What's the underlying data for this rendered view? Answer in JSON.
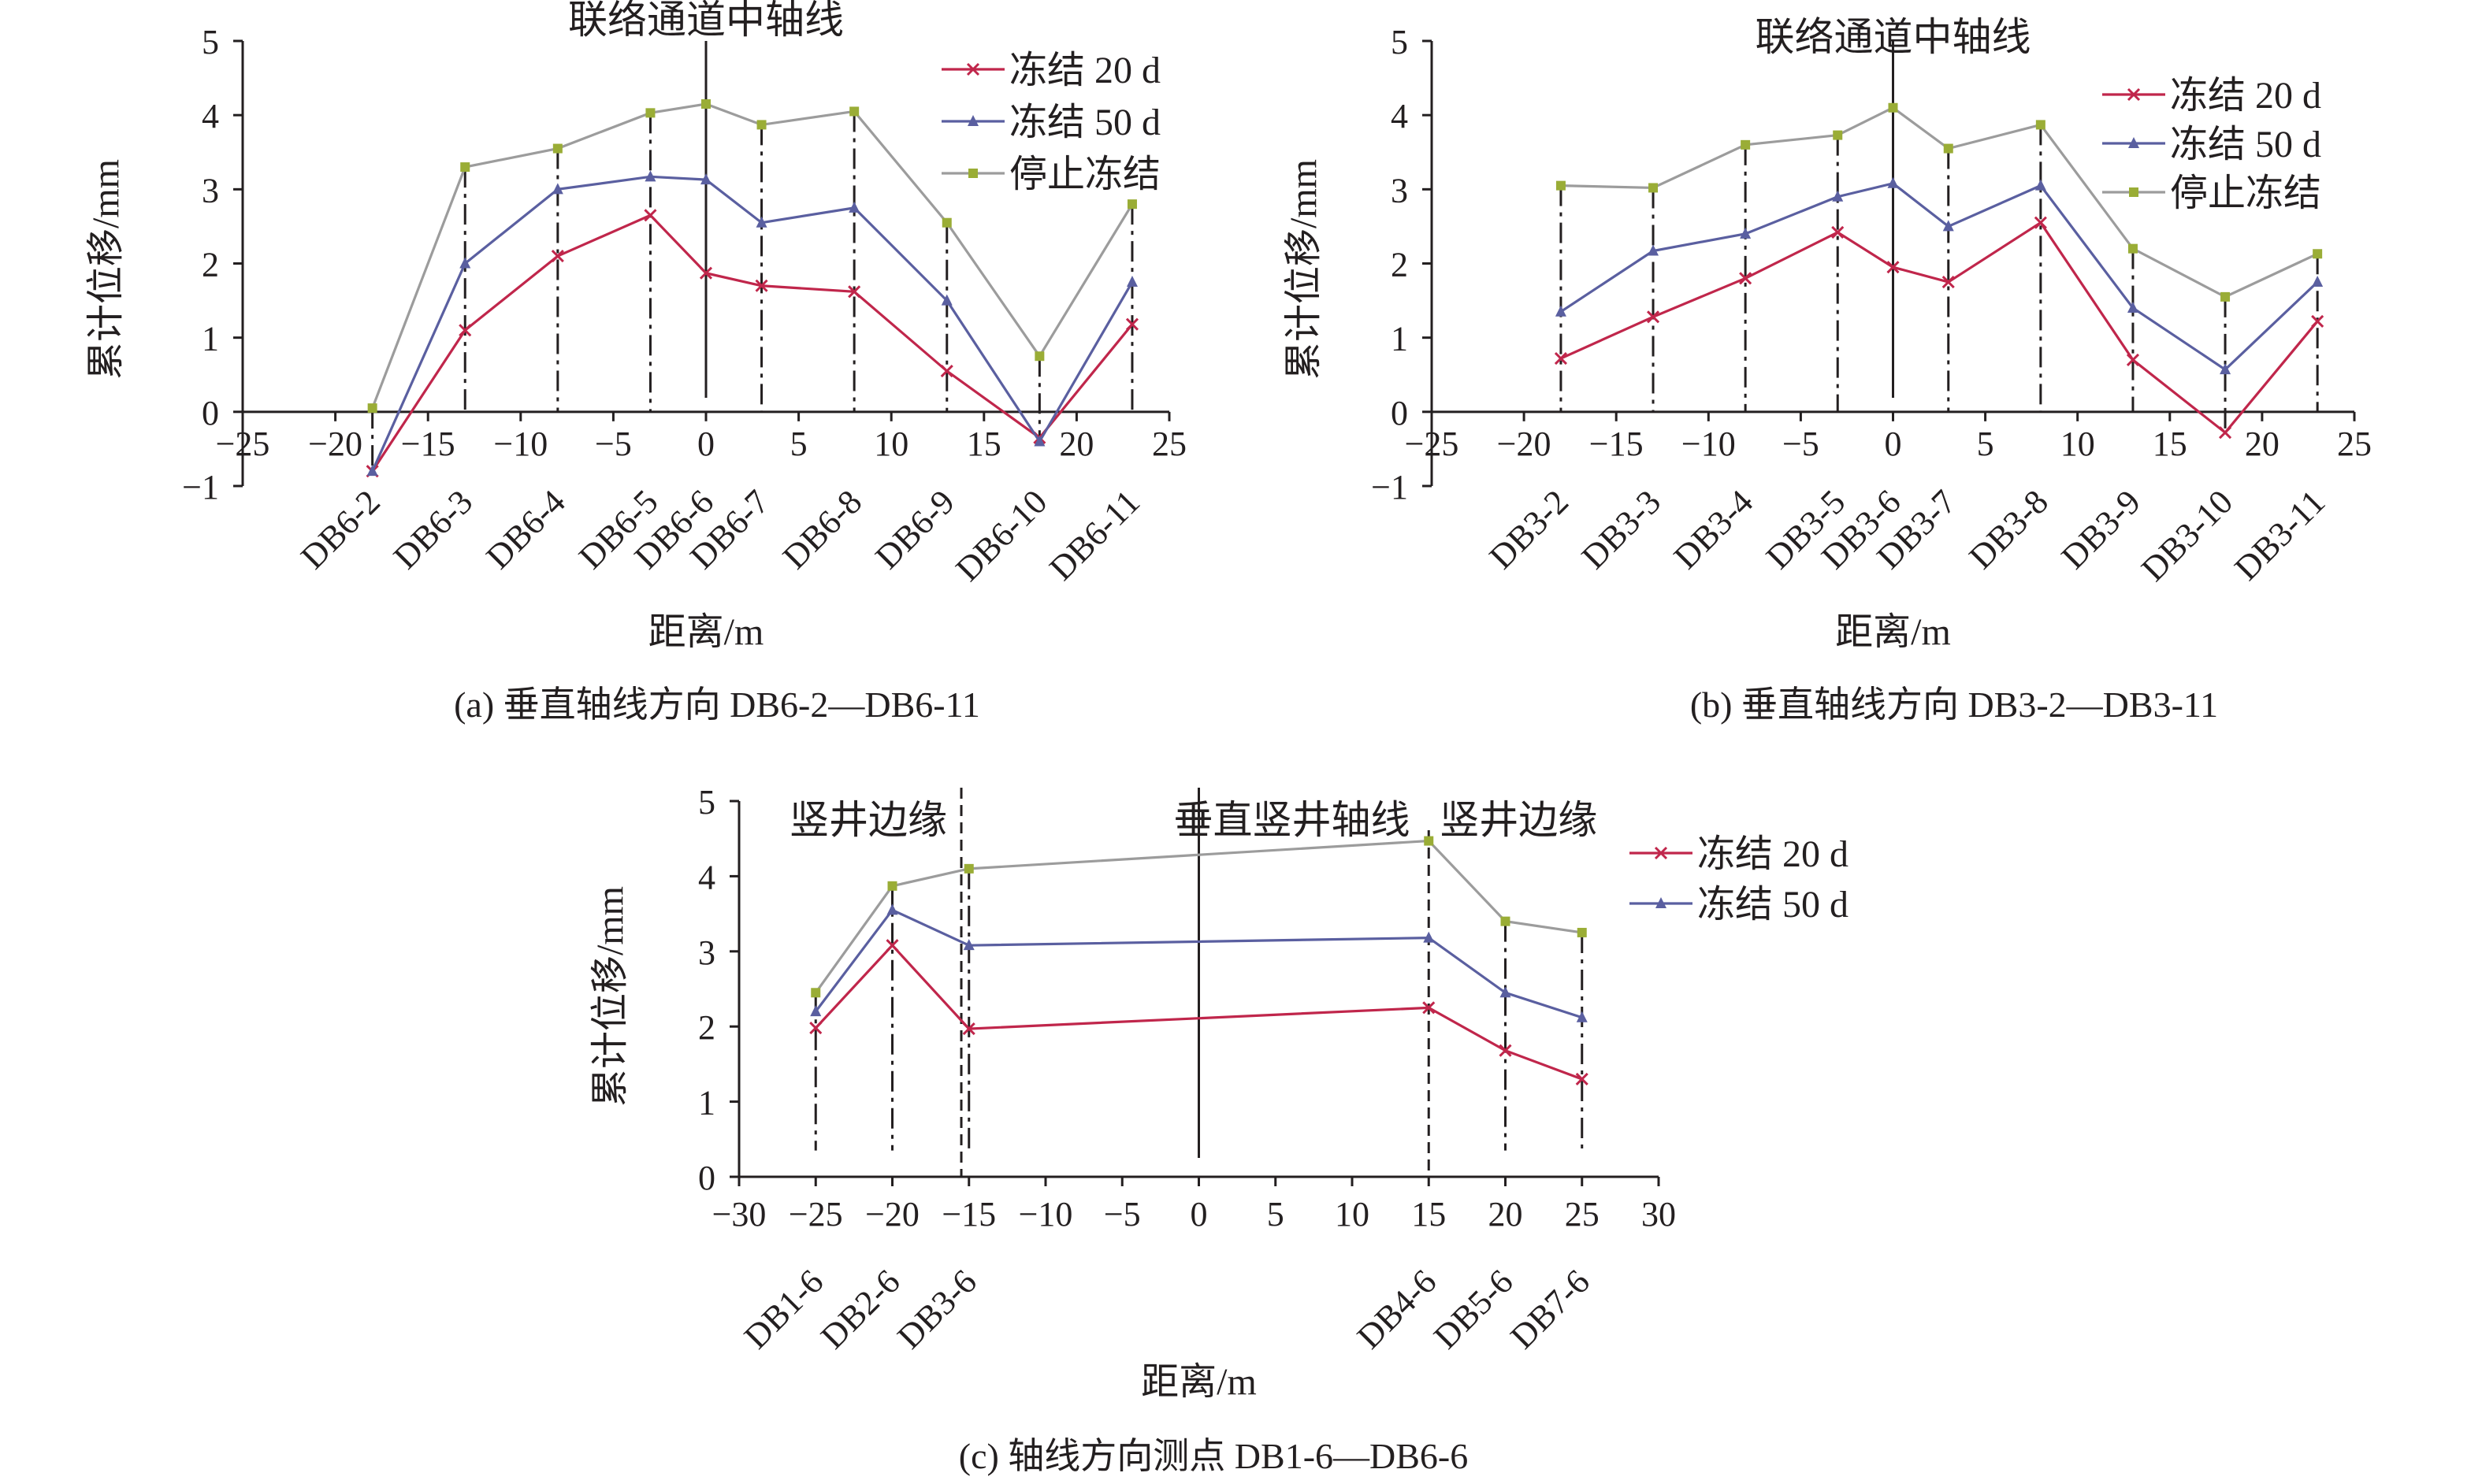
{
  "panel_captions": [
    "(a) 垂直轴线方向 DB6-2—DB6-11",
    "(b) 垂直轴线方向 DB3-2—DB3-11",
    "(c) 轴线方向测点 DB1-6—DB6-6"
  ],
  "colors": {
    "series_20d": "#c0264b",
    "series_50d": "#5a5fa0",
    "series_stop": "#9c9c9c",
    "marker_stop": "#9aad36",
    "axis": "#231f20",
    "guide": "#231f20"
  },
  "chart_data": [
    {
      "id": "a",
      "type": "line",
      "title": "",
      "xlabel": "距离/m",
      "ylabel": "累计位移/mm",
      "xlim": [
        -25,
        25
      ],
      "ylim": [
        -1,
        5
      ],
      "xticks": [
        -25,
        -20,
        -15,
        -10,
        -5,
        0,
        5,
        10,
        15,
        20,
        25
      ],
      "xtick_labels": [
        "−25",
        "−20",
        "−15",
        "−10",
        "−5",
        "0",
        "5",
        "10",
        "15",
        "20",
        "25"
      ],
      "yticks": [
        -1,
        0,
        1,
        2,
        3,
        4,
        5
      ],
      "ytick_labels": [
        "−1",
        "0",
        "1",
        "2",
        "3",
        "4",
        "5"
      ],
      "x": [
        -18,
        -13,
        -8,
        -3,
        0,
        3,
        8,
        13,
        18,
        23
      ],
      "points": [
        "DB6-2",
        "DB6-3",
        "DB6-4",
        "DB6-5",
        "DB6-6",
        "DB6-7",
        "DB6-8",
        "DB6-9",
        "DB6-10",
        "DB6-11"
      ],
      "series": [
        {
          "name": "冻结 20 d",
          "key": "series_20d",
          "marker": "x",
          "values": [
            -0.8,
            1.1,
            2.1,
            2.65,
            1.87,
            1.7,
            1.62,
            0.55,
            -0.35,
            1.18
          ]
        },
        {
          "name": "冻结 50 d",
          "key": "series_50d",
          "marker": "triangle",
          "values": [
            -0.8,
            2.0,
            3.0,
            3.17,
            3.13,
            2.55,
            2.75,
            1.5,
            -0.4,
            1.75
          ]
        },
        {
          "name": "停止冻结",
          "key": "series_stop",
          "marker": "square",
          "values": [
            0.05,
            3.3,
            3.55,
            4.03,
            4.15,
            3.87,
            4.05,
            2.55,
            0.75,
            2.8
          ]
        }
      ],
      "annotations": [
        {
          "text": "联络通道中轴线",
          "x": 0
        }
      ],
      "legend": "top-right"
    },
    {
      "id": "b",
      "type": "line",
      "title": "",
      "xlabel": "距离/m",
      "ylabel": "累计位移/mm",
      "xlim": [
        -25,
        25
      ],
      "ylim": [
        -1,
        5
      ],
      "xticks": [
        -25,
        -20,
        -15,
        -10,
        -5,
        0,
        5,
        10,
        15,
        20,
        25
      ],
      "xtick_labels": [
        "−25",
        "−20",
        "−15",
        "−10",
        "−5",
        "0",
        "5",
        "10",
        "15",
        "20",
        "25"
      ],
      "yticks": [
        -1,
        0,
        1,
        2,
        3,
        4,
        5
      ],
      "ytick_labels": [
        "−1",
        "0",
        "1",
        "2",
        "3",
        "4",
        "5"
      ],
      "x": [
        -18,
        -13,
        -8,
        -3,
        0,
        3,
        8,
        13,
        18,
        23
      ],
      "points": [
        "DB3-2",
        "DB3-3",
        "DB3-4",
        "DB3-5",
        "DB3-6",
        "DB3-7",
        "DB3-8",
        "DB3-9",
        "DB3-10",
        "DB3-11"
      ],
      "series": [
        {
          "name": "冻结 20 d",
          "key": "series_20d",
          "marker": "x",
          "values": [
            0.72,
            1.28,
            1.8,
            2.42,
            1.95,
            1.75,
            2.55,
            0.7,
            -0.28,
            1.22
          ]
        },
        {
          "name": "冻结 50 d",
          "key": "series_50d",
          "marker": "triangle",
          "values": [
            1.35,
            2.17,
            2.4,
            2.9,
            3.08,
            2.5,
            3.05,
            1.4,
            0.57,
            1.75
          ]
        },
        {
          "name": "停止冻结",
          "key": "series_stop",
          "marker": "square",
          "values": [
            3.05,
            3.02,
            3.6,
            3.73,
            4.1,
            3.55,
            3.87,
            2.2,
            1.55,
            2.13
          ]
        }
      ],
      "annotations": [
        {
          "text": "联络通道中轴线",
          "x": 0
        }
      ],
      "legend": "top-right"
    },
    {
      "id": "c",
      "type": "line",
      "title": "",
      "xlabel": "距离/m",
      "ylabel": "累计位移/mm",
      "xlim": [
        -30,
        30
      ],
      "ylim": [
        0,
        5
      ],
      "xticks": [
        -30,
        -25,
        -20,
        -15,
        -10,
        -5,
        0,
        5,
        10,
        15,
        20,
        25,
        30
      ],
      "xtick_labels": [
        "−30",
        "−25",
        "−20",
        "−15",
        "−10",
        "−5",
        "0",
        "5",
        "10",
        "15",
        "20",
        "25",
        "30"
      ],
      "yticks": [
        0,
        1,
        2,
        3,
        4,
        5
      ],
      "ytick_labels": [
        "0",
        "1",
        "2",
        "3",
        "4",
        "5"
      ],
      "x": [
        -25,
        -20,
        -15,
        15,
        20,
        25
      ],
      "points": [
        "DB1-6",
        "DB2-6",
        "DB3-6",
        "DB4-6",
        "DB5-6",
        "DB7-6"
      ],
      "series": [
        {
          "name": "冻结 20 d",
          "key": "series_20d",
          "marker": "x",
          "values": [
            1.98,
            3.08,
            1.97,
            2.25,
            1.68,
            1.3
          ]
        },
        {
          "name": "冻结 50 d",
          "key": "series_50d",
          "marker": "triangle",
          "values": [
            2.2,
            3.55,
            3.08,
            3.18,
            2.45,
            2.12
          ]
        },
        {
          "name": "",
          "key": "series_stop",
          "marker": "square",
          "values": [
            2.45,
            3.87,
            4.1,
            4.47,
            3.4,
            3.25
          ]
        }
      ],
      "annotations": [
        {
          "text": "竖井边缘",
          "x": -15.5
        },
        {
          "text": "垂直竖井轴线",
          "x": 0
        },
        {
          "text": "竖井边缘",
          "x": 15
        }
      ],
      "legend": "top-right"
    }
  ]
}
